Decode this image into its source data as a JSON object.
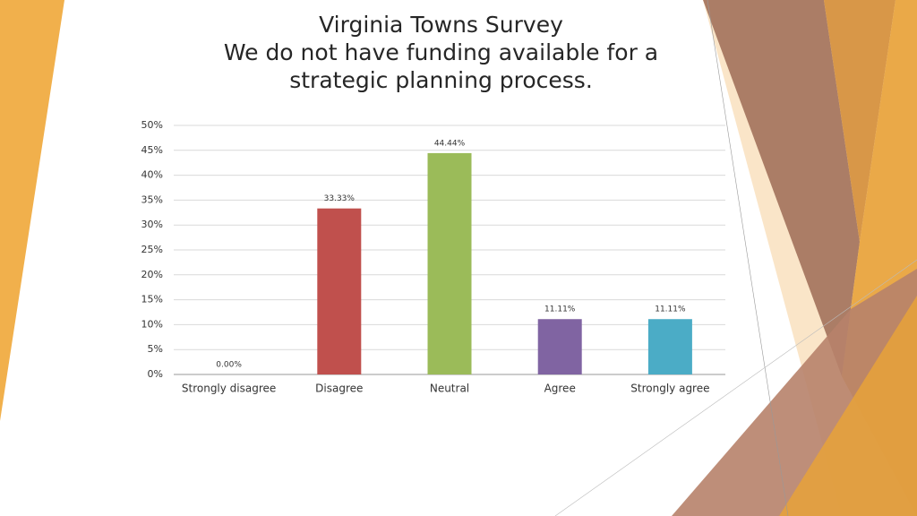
{
  "chart_data": {
    "type": "bar",
    "title": "Virginia Towns Survey",
    "subtitle": "We do not have funding available for a strategic planning process.",
    "categories": [
      "Strongly disagree",
      "Disagree",
      "Neutral",
      "Agree",
      "Strongly agree"
    ],
    "values": [
      0,
      33.33,
      44.44,
      11.11,
      11.11
    ],
    "value_labels": [
      "0.00%",
      "33.33%",
      "44.44%",
      "11.11%",
      "11.11%"
    ],
    "colors": [
      "#4f81bd",
      "#c0504d",
      "#9bbb59",
      "#8064a2",
      "#4bacc6"
    ],
    "ylim": [
      0,
      50
    ],
    "yticks": [
      {
        "value": 0,
        "label": "0%"
      },
      {
        "value": 5,
        "label": "5%"
      },
      {
        "value": 10,
        "label": "10%"
      },
      {
        "value": 15,
        "label": "15%"
      },
      {
        "value": 20,
        "label": "20%"
      },
      {
        "value": 25,
        "label": "25%"
      },
      {
        "value": 30,
        "label": "30%"
      },
      {
        "value": 35,
        "label": "35%"
      },
      {
        "value": 40,
        "label": "40%"
      },
      {
        "value": 45,
        "label": "45%"
      },
      {
        "value": 50,
        "label": "50%"
      }
    ],
    "grid": true
  }
}
